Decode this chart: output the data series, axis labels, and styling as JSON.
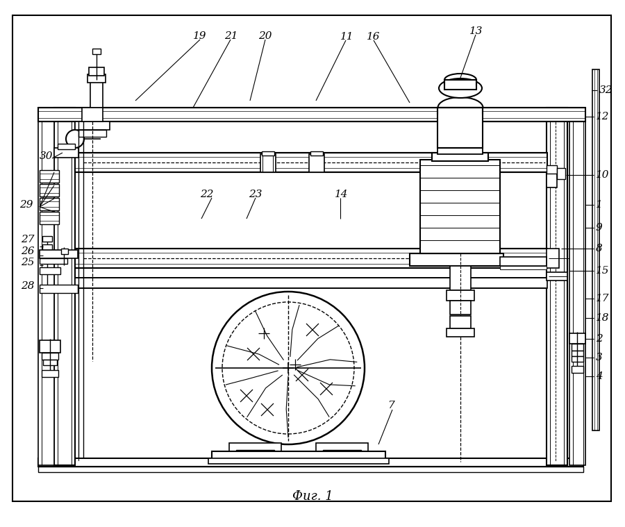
{
  "bg_color": "#ffffff",
  "fig_width": 9.0,
  "fig_height": 7.59,
  "dpi": 100,
  "caption": "Фиг. 1"
}
